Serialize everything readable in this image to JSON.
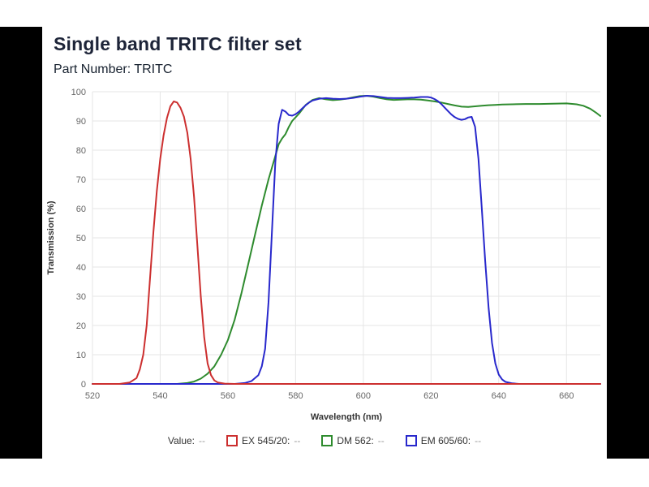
{
  "page": {
    "title": "Single band TRITC filter set",
    "subtitle": "Part Number: TRITC"
  },
  "chart_data": {
    "type": "line",
    "title": "Single band TRITC filter set",
    "subtitle": "Part Number: TRITC",
    "xlabel": "Wavelength (nm)",
    "ylabel": "Transmission (%)",
    "xlim": [
      520,
      670
    ],
    "ylim": [
      0,
      100
    ],
    "x_ticks": [
      520,
      540,
      560,
      580,
      600,
      620,
      640,
      660
    ],
    "y_ticks": [
      0,
      10,
      20,
      30,
      40,
      50,
      60,
      70,
      80,
      90,
      100
    ],
    "grid": true,
    "grid_color": "#e6e6e6",
    "tick_label_color": "#666666",
    "axis_label_color": "#333333",
    "legend_position": "bottom",
    "series": [
      {
        "name": "EX 545/20",
        "color": "#cc2f2f",
        "points": [
          [
            520,
            0
          ],
          [
            528,
            0
          ],
          [
            531,
            0.5
          ],
          [
            533,
            2
          ],
          [
            534,
            5
          ],
          [
            535,
            10
          ],
          [
            536,
            20
          ],
          [
            537,
            36
          ],
          [
            538,
            52
          ],
          [
            539,
            66
          ],
          [
            540,
            77
          ],
          [
            541,
            85
          ],
          [
            542,
            91
          ],
          [
            543,
            95
          ],
          [
            544,
            96.7
          ],
          [
            545,
            96.3
          ],
          [
            546,
            94.5
          ],
          [
            547,
            91.5
          ],
          [
            548,
            86
          ],
          [
            549,
            77
          ],
          [
            550,
            64
          ],
          [
            551,
            47
          ],
          [
            552,
            30
          ],
          [
            553,
            16
          ],
          [
            554,
            7
          ],
          [
            555,
            3
          ],
          [
            556,
            1.2
          ],
          [
            557,
            0.5
          ],
          [
            559,
            0.1
          ],
          [
            562,
            0
          ],
          [
            670,
            0
          ]
        ]
      },
      {
        "name": "DM 562",
        "color": "#2e8b2e",
        "points": [
          [
            520,
            0
          ],
          [
            545,
            0
          ],
          [
            548,
            0.3
          ],
          [
            550,
            0.8
          ],
          [
            552,
            1.8
          ],
          [
            554,
            3.5
          ],
          [
            556,
            6
          ],
          [
            558,
            10
          ],
          [
            560,
            15
          ],
          [
            562,
            22
          ],
          [
            564,
            31
          ],
          [
            566,
            41
          ],
          [
            568,
            51
          ],
          [
            570,
            61
          ],
          [
            572,
            70
          ],
          [
            573,
            74
          ],
          [
            574,
            78
          ],
          [
            575,
            82
          ],
          [
            576,
            84
          ],
          [
            577,
            85.5
          ],
          [
            578,
            88
          ],
          [
            579,
            90
          ],
          [
            581,
            92.5
          ],
          [
            583,
            95.5
          ],
          [
            585,
            97.2
          ],
          [
            587,
            97.8
          ],
          [
            589,
            97.4
          ],
          [
            591,
            97.1
          ],
          [
            593,
            97.3
          ],
          [
            595,
            97.6
          ],
          [
            597,
            98.1
          ],
          [
            599,
            98.5
          ],
          [
            601,
            98.6
          ],
          [
            603,
            98.3
          ],
          [
            605,
            97.8
          ],
          [
            607,
            97.4
          ],
          [
            609,
            97.2
          ],
          [
            611,
            97.3
          ],
          [
            613,
            97.4
          ],
          [
            615,
            97.4
          ],
          [
            617,
            97.3
          ],
          [
            619,
            97
          ],
          [
            621,
            96.7
          ],
          [
            623,
            96.3
          ],
          [
            625,
            95.8
          ],
          [
            627,
            95.3
          ],
          [
            629,
            94.9
          ],
          [
            631,
            94.8
          ],
          [
            633,
            95
          ],
          [
            635,
            95.2
          ],
          [
            637,
            95.4
          ],
          [
            639,
            95.5
          ],
          [
            641,
            95.6
          ],
          [
            644,
            95.7
          ],
          [
            648,
            95.8
          ],
          [
            652,
            95.8
          ],
          [
            656,
            95.9
          ],
          [
            660,
            96
          ],
          [
            663,
            95.7
          ],
          [
            665,
            95.2
          ],
          [
            667,
            94.2
          ],
          [
            669,
            92.6
          ],
          [
            670,
            91.7
          ]
        ]
      },
      {
        "name": "EM 605/60",
        "color": "#2828cc",
        "points": [
          [
            520,
            0
          ],
          [
            562,
            0
          ],
          [
            565,
            0.3
          ],
          [
            567,
            1
          ],
          [
            569,
            3
          ],
          [
            570,
            6
          ],
          [
            571,
            12
          ],
          [
            572,
            28
          ],
          [
            573,
            52
          ],
          [
            574,
            76
          ],
          [
            575,
            89
          ],
          [
            576,
            93.8
          ],
          [
            577,
            93.2
          ],
          [
            578,
            92
          ],
          [
            579,
            91.8
          ],
          [
            580,
            92.3
          ],
          [
            581,
            93.2
          ],
          [
            582,
            94.3
          ],
          [
            583,
            95.4
          ],
          [
            584,
            96.3
          ],
          [
            585,
            97
          ],
          [
            587,
            97.6
          ],
          [
            589,
            97.8
          ],
          [
            591,
            97.6
          ],
          [
            593,
            97.5
          ],
          [
            595,
            97.6
          ],
          [
            597,
            97.9
          ],
          [
            599,
            98.3
          ],
          [
            601,
            98.6
          ],
          [
            603,
            98.5
          ],
          [
            605,
            98.2
          ],
          [
            607,
            97.9
          ],
          [
            609,
            97.8
          ],
          [
            611,
            97.8
          ],
          [
            613,
            97.9
          ],
          [
            615,
            98
          ],
          [
            617,
            98.2
          ],
          [
            619,
            98.2
          ],
          [
            620,
            98
          ],
          [
            621,
            97.5
          ],
          [
            622,
            96.8
          ],
          [
            623,
            95.8
          ],
          [
            624,
            94.6
          ],
          [
            625,
            93.4
          ],
          [
            626,
            92.2
          ],
          [
            627,
            91.3
          ],
          [
            628,
            90.7
          ],
          [
            629,
            90.4
          ],
          [
            630,
            90.6
          ],
          [
            631,
            91.2
          ],
          [
            632,
            91.4
          ],
          [
            633,
            88
          ],
          [
            634,
            77
          ],
          [
            635,
            60
          ],
          [
            636,
            42
          ],
          [
            637,
            26
          ],
          [
            638,
            14
          ],
          [
            639,
            7
          ],
          [
            640,
            3.2
          ],
          [
            641,
            1.5
          ],
          [
            642,
            0.7
          ],
          [
            644,
            0.2
          ],
          [
            646,
            0
          ],
          [
            670,
            0
          ]
        ]
      }
    ]
  },
  "legend": {
    "value_label": "Value:",
    "value_placeholder": "--",
    "items": [
      {
        "label": "EX 545/20:",
        "value": "--",
        "color": "#cc2f2f"
      },
      {
        "label": "DM 562:",
        "value": "--",
        "color": "#2e8b2e"
      },
      {
        "label": "EM 605/60:",
        "value": "--",
        "color": "#2828cc"
      }
    ]
  }
}
